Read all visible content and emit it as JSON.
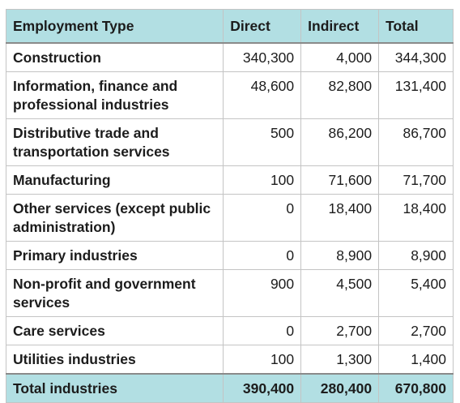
{
  "table": {
    "headers": [
      "Employment Type",
      "Direct",
      "Indirect",
      "Total"
    ],
    "rows": [
      {
        "label": "Construction",
        "direct": "340,300",
        "indirect": "4,000",
        "total": "344,300"
      },
      {
        "label": "Information, finance and professional industries",
        "direct": "48,600",
        "indirect": "82,800",
        "total": "131,400"
      },
      {
        "label": "Distributive trade and transportation services",
        "direct": "500",
        "indirect": "86,200",
        "total": "86,700"
      },
      {
        "label": "Manufacturing",
        "direct": "100",
        "indirect": "71,600",
        "total": "71,700"
      },
      {
        "label": "Other services (except public administration)",
        "direct": "0",
        "indirect": "18,400",
        "total": "18,400"
      },
      {
        "label": "Primary industries",
        "direct": "0",
        "indirect": "8,900",
        "total": "8,900"
      },
      {
        "label": "Non-profit and government services",
        "direct": "900",
        "indirect": "4,500",
        "total": "5,400"
      },
      {
        "label": "Care services",
        "direct": "0",
        "indirect": "2,700",
        "total": "2,700"
      },
      {
        "label": "Utilities industries",
        "direct": "100",
        "indirect": "1,300",
        "total": "1,400"
      }
    ],
    "total": {
      "label": "Total industries",
      "direct": "390,400",
      "indirect": "280,400",
      "total": "670,800"
    }
  },
  "colors": {
    "header_background": "#b2dfe3",
    "border": "#c4c4c4",
    "text": "#1c1c1c"
  }
}
